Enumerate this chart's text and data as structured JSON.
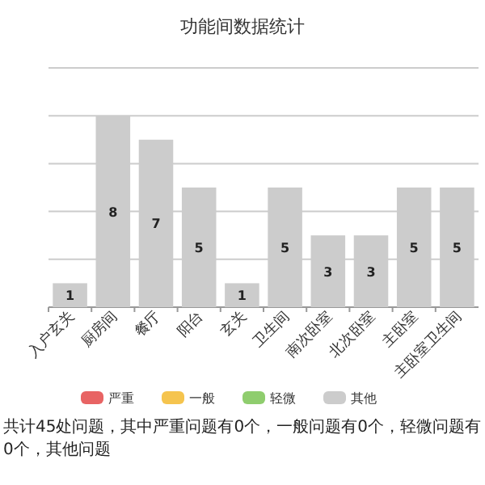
{
  "chart_data": {
    "type": "bar",
    "title": "功能间数据统计",
    "categories": [
      "入户玄关",
      "厨房间",
      "餐厅",
      "阳台",
      "玄关",
      "卫生间",
      "南次卧室",
      "北次卧室",
      "主卧室",
      "主卧室卫生间"
    ],
    "series": [
      {
        "name": "严重",
        "color": "#e86464",
        "values": [
          null,
          null,
          null,
          null,
          null,
          null,
          null,
          null,
          null,
          null
        ]
      },
      {
        "name": "一般",
        "color": "#f5c44e",
        "values": [
          null,
          null,
          null,
          null,
          null,
          null,
          null,
          null,
          null,
          null
        ]
      },
      {
        "name": "轻微",
        "color": "#8fcd6e",
        "values": [
          null,
          null,
          null,
          null,
          null,
          null,
          null,
          null,
          null,
          null
        ]
      },
      {
        "name": "其他",
        "color": "#cccccc",
        "values": [
          1,
          8,
          7,
          5,
          1,
          5,
          3,
          3,
          5,
          5
        ]
      }
    ],
    "data_labels": true,
    "ylim": [
      0,
      10
    ],
    "yticks": [
      {
        "value": 0,
        "label": null
      },
      {
        "value": 2,
        "label": null
      },
      {
        "value": 4,
        "label": null
      },
      {
        "value": 6,
        "label": null
      },
      {
        "value": 8,
        "label": null
      },
      {
        "value": 10,
        "label": null
      }
    ],
    "tick_labels": "x",
    "grid": "y",
    "legend": "bottom",
    "annotations": [
      "共计45处问题，其中严重问题有0个，一般问题有0个，轻微问题有0个，其他问题"
    ]
  }
}
